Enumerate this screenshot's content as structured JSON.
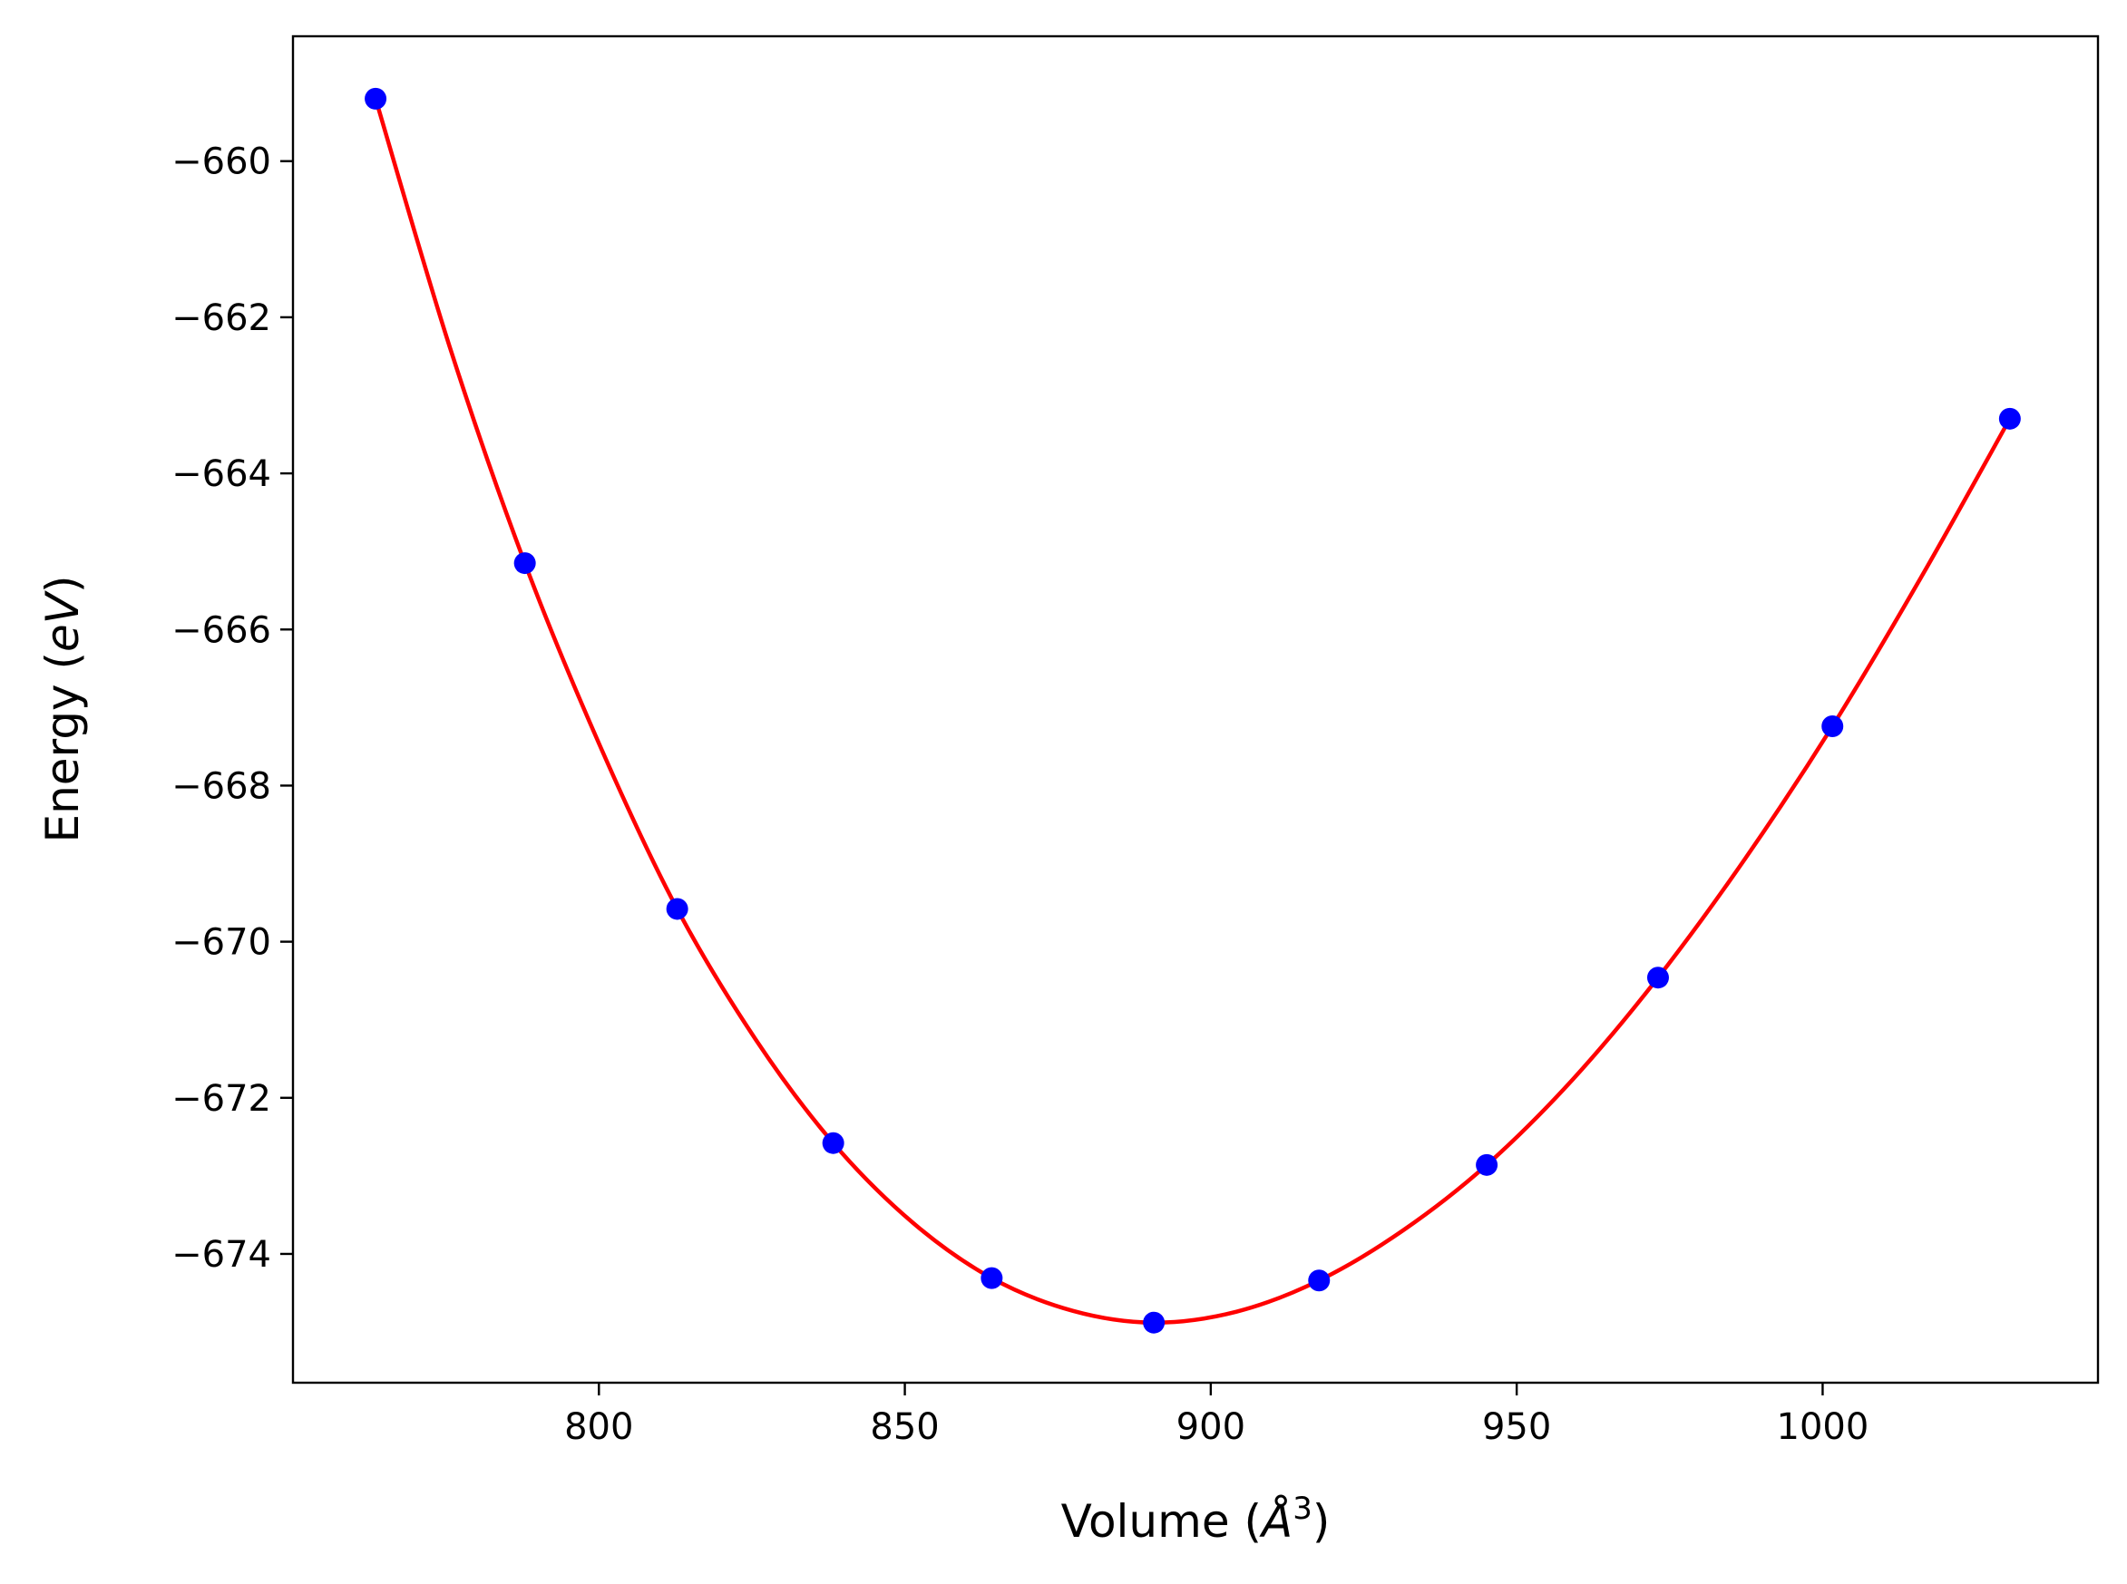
{
  "chart_data": {
    "type": "scatter",
    "xlabel": "Volume (Å³)",
    "xlabel_parts": {
      "pre": "Volume (",
      "sym": "Å",
      "sup": "3",
      "post": ")"
    },
    "ylabel": "Energy (eV)",
    "ylabel_parts": {
      "pre": "Energy (",
      "sym": "eV",
      "post": ")"
    },
    "xlim": [
      750,
      1045
    ],
    "ylim": [
      -675.65,
      -658.4
    ],
    "x_ticks": [
      800,
      850,
      900,
      950,
      1000
    ],
    "x_tick_labels": [
      "800",
      "850",
      "900",
      "950",
      "1000"
    ],
    "y_ticks": [
      -660,
      -662,
      -664,
      -666,
      -668,
      -670,
      -672,
      -674
    ],
    "y_tick_labels": [
      "−660",
      "−662",
      "−664",
      "−666",
      "−668",
      "−670",
      "−672",
      "−674"
    ],
    "grid": false,
    "series": [
      {
        "kind": "points",
        "color": "#0000ff",
        "points": [
          {
            "x": 763.5,
            "y": -659.2
          },
          {
            "x": 787.9,
            "y": -665.15
          },
          {
            "x": 812.8,
            "y": -669.58
          },
          {
            "x": 838.3,
            "y": -672.58
          },
          {
            "x": 864.2,
            "y": -674.31
          },
          {
            "x": 890.7,
            "y": -674.88
          },
          {
            "x": 917.7,
            "y": -674.34
          },
          {
            "x": 945.1,
            "y": -672.86
          },
          {
            "x": 973.1,
            "y": -670.46
          },
          {
            "x": 1001.6,
            "y": -667.24
          },
          {
            "x": 1030.6,
            "y": -663.3
          }
        ]
      },
      {
        "kind": "fit-curve",
        "color": "#ff0000",
        "points": [
          {
            "x": 763.5,
            "y": -659.2
          },
          {
            "x": 775.7,
            "y": -662.4
          },
          {
            "x": 787.9,
            "y": -665.15
          },
          {
            "x": 800.4,
            "y": -667.53
          },
          {
            "x": 812.8,
            "y": -669.58
          },
          {
            "x": 825.6,
            "y": -671.25
          },
          {
            "x": 838.3,
            "y": -672.58
          },
          {
            "x": 851.3,
            "y": -673.6
          },
          {
            "x": 864.2,
            "y": -674.31
          },
          {
            "x": 877.5,
            "y": -674.73
          },
          {
            "x": 890.7,
            "y": -674.88
          },
          {
            "x": 904.2,
            "y": -674.74
          },
          {
            "x": 917.7,
            "y": -674.34
          },
          {
            "x": 931.4,
            "y": -673.7
          },
          {
            "x": 945.1,
            "y": -672.86
          },
          {
            "x": 959.1,
            "y": -671.77
          },
          {
            "x": 973.1,
            "y": -670.46
          },
          {
            "x": 987.3,
            "y": -668.94
          },
          {
            "x": 1001.6,
            "y": -667.24
          },
          {
            "x": 1016.1,
            "y": -665.33
          },
          {
            "x": 1030.6,
            "y": -663.3
          }
        ]
      }
    ]
  }
}
